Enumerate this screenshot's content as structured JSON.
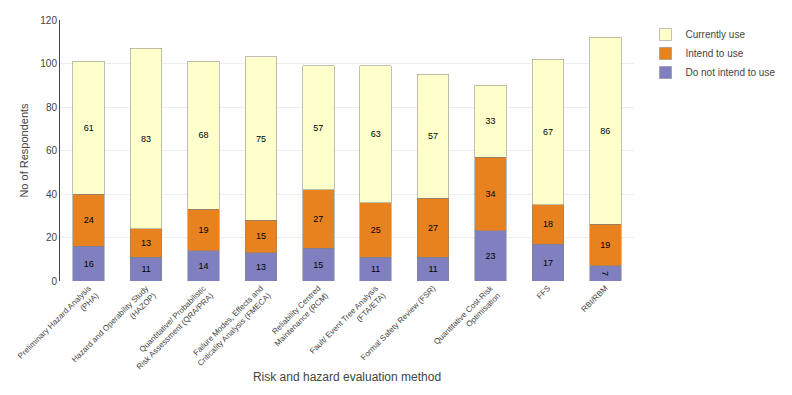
{
  "chart_data": {
    "type": "bar",
    "stacked": true,
    "xlabel": "Risk and hazard evaluation method",
    "ylabel": "No of Respondents",
    "categories": [
      "Preliminary Hazard Analysis (PHA)",
      "Hazard and Operability Study (HAZOP)",
      "Quantitative/ Probabilistic Risk Assessment (QRA/PRA)",
      "Failure Modes, Effects and Criticality Analysis (FMECA)",
      "Reliability Centred Maintenance (RCM)",
      "Fault/ Event Tree Analysis (FTA/ETA)",
      "Formal Safety Review (FSR)",
      "Quantitative Cost-Risk Optimisation",
      "FFS",
      "RBI/RBM"
    ],
    "series": [
      {
        "name": "Do not intend to use",
        "color": "#8080c0",
        "values": [
          16,
          11,
          14,
          13,
          15,
          11,
          11,
          23,
          17,
          7
        ]
      },
      {
        "name": "Intend to use",
        "color": "#e8821e",
        "values": [
          24,
          13,
          19,
          15,
          27,
          25,
          27,
          34,
          18,
          19
        ]
      },
      {
        "name": "Currently use",
        "color": "#ffffcc",
        "values": [
          61,
          83,
          68,
          75,
          57,
          63,
          57,
          33,
          67,
          86
        ]
      }
    ],
    "ylim": [
      0,
      120
    ],
    "yticks": [
      0,
      20,
      40,
      60,
      80,
      100,
      120
    ],
    "grid": true,
    "legend": "upper right",
    "data_labels": true
  }
}
